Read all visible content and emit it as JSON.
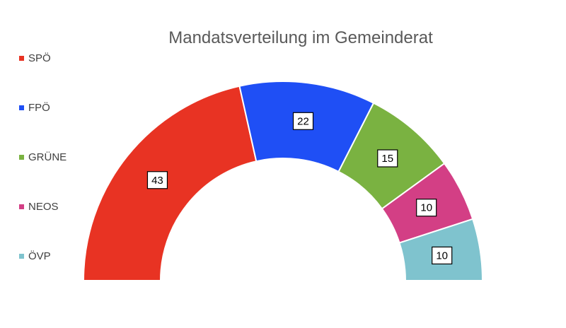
{
  "chart_data": {
    "type": "pie",
    "subtype": "half-donut",
    "title": "Mandatsverteilung im Gemeinderat",
    "legend_position": "left",
    "categories": [
      "SPÖ",
      "FPÖ",
      "GRÜNE",
      "NEOS",
      "ÖVP"
    ],
    "values": [
      43,
      22,
      15,
      10,
      10
    ],
    "colors": [
      "#e83323",
      "#1f4ff5",
      "#7ab241",
      "#d33f85",
      "#7fc3ce"
    ],
    "data_labels": [
      "43",
      "22",
      "15",
      "10",
      "10"
    ]
  }
}
